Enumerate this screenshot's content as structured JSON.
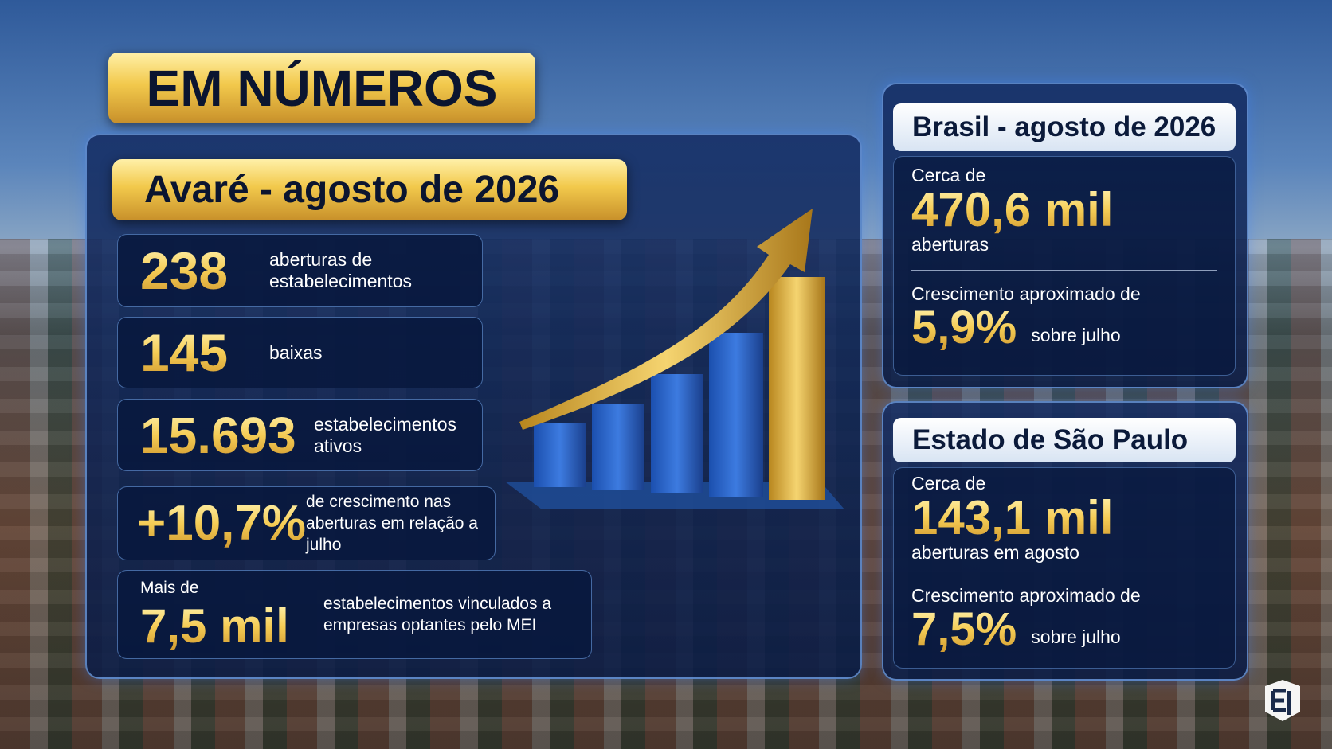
{
  "header": {
    "title": "EM NÚMEROS"
  },
  "avare": {
    "title": "Avaré - agosto de 2026",
    "stats": [
      {
        "value": "238",
        "label": "aberturas de estabelecimentos"
      },
      {
        "value": "145",
        "label": "baixas"
      },
      {
        "value": "15.693",
        "label": "estabelecimentos ativos"
      },
      {
        "value": "+10,7%",
        "label": "de crescimento nas aberturas em relação a julho"
      },
      {
        "prefix": "Mais de",
        "value": "7,5 mil",
        "label": "estabelecimentos vinculados a empresas optantes pelo MEI"
      }
    ]
  },
  "brasil": {
    "title": "Brasil - agosto de 2026",
    "prefix": "Cerca de",
    "value": "470,6 mil",
    "suffix": "aberturas",
    "growth_prefix": "Crescimento aproximado de",
    "growth_value": "5,9%",
    "growth_suffix": "sobre julho"
  },
  "sp": {
    "title": "Estado de São Paulo",
    "prefix": "Cerca de",
    "value": "143,1 mil",
    "suffix": "aberturas em agosto",
    "growth_prefix": "Crescimento aproximado de",
    "growth_value": "7,5%",
    "growth_suffix": "sobre julho"
  }
}
